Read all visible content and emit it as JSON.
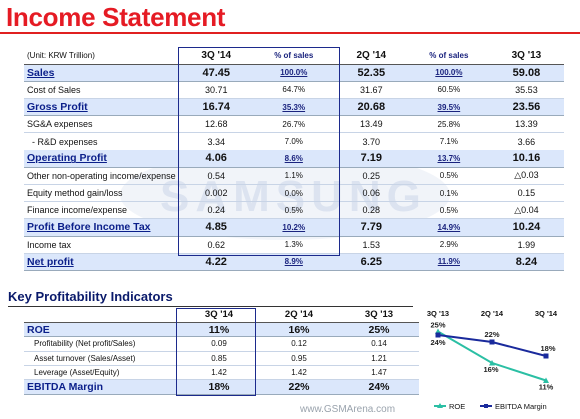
{
  "page": {
    "title": "Income Statement",
    "watermark": "SAMSUNG",
    "site_mark": "www.GSMArena.com"
  },
  "income": {
    "headers": [
      "(Unit: KRW Trillion)",
      "3Q '14",
      "% of sales",
      "2Q '14",
      "% of sales",
      "3Q '13"
    ],
    "rows": [
      {
        "label": "Sales",
        "q3_14": "47.45",
        "pct_q3_14": "100.0%",
        "q2_14": "52.35",
        "pct_q2_14": "100.0%",
        "q3_13": "59.08",
        "kind": "major"
      },
      {
        "label": "Cost of Sales",
        "q3_14": "30.71",
        "pct_q3_14": "64.7%",
        "q2_14": "31.67",
        "pct_q2_14": "60.5%",
        "q3_13": "35.53",
        "kind": "minor"
      },
      {
        "label": "Gross Profit",
        "q3_14": "16.74",
        "pct_q3_14": "35.3%",
        "q2_14": "20.68",
        "pct_q2_14": "39.5%",
        "q3_13": "23.56",
        "kind": "major"
      },
      {
        "label": "SG&A expenses",
        "q3_14": "12.68",
        "pct_q3_14": "26.7%",
        "q2_14": "13.49",
        "pct_q2_14": "25.8%",
        "q3_13": "13.39",
        "kind": "minor"
      },
      {
        "label": "- R&D expenses",
        "q3_14": "3.34",
        "pct_q3_14": "7.0%",
        "q2_14": "3.70",
        "pct_q2_14": "7.1%",
        "q3_13": "3.66",
        "kind": "indent"
      },
      {
        "label": "Operating Profit",
        "q3_14": "4.06",
        "pct_q3_14": "8.6%",
        "q2_14": "7.19",
        "pct_q2_14": "13.7%",
        "q3_13": "10.16",
        "kind": "major"
      },
      {
        "label": "Other non-operating income/expense",
        "q3_14": "0.54",
        "pct_q3_14": "1.1%",
        "q2_14": "0.25",
        "pct_q2_14": "0.5%",
        "q3_13": "△0.03",
        "kind": "minor"
      },
      {
        "label": "Equity method gain/loss",
        "q3_14": "0.002",
        "pct_q3_14": "0.0%",
        "q2_14": "0.06",
        "pct_q2_14": "0.1%",
        "q3_13": "0.15",
        "kind": "minor"
      },
      {
        "label": "Finance income/expense",
        "q3_14": "0.24",
        "pct_q3_14": "0.5%",
        "q2_14": "0.28",
        "pct_q2_14": "0.5%",
        "q3_13": "△0.04",
        "kind": "minor"
      },
      {
        "label": "Profit Before Income Tax",
        "q3_14": "4.85",
        "pct_q3_14": "10.2%",
        "q2_14": "7.79",
        "pct_q2_14": "14.9%",
        "q3_13": "10.24",
        "kind": "major"
      },
      {
        "label": "Income tax",
        "q3_14": "0.62",
        "pct_q3_14": "1.3%",
        "q2_14": "1.53",
        "pct_q2_14": "2.9%",
        "q3_13": "1.99",
        "kind": "minor"
      },
      {
        "label": "Net profit",
        "q3_14": "4.22",
        "pct_q3_14": "8.9%",
        "q2_14": "6.25",
        "pct_q2_14": "11.9%",
        "q3_13": "8.24",
        "kind": "major"
      }
    ]
  },
  "kpi": {
    "title": "Key Profitability Indicators",
    "headers": [
      "",
      "3Q '14",
      "2Q '14",
      "3Q '13"
    ],
    "rows": [
      {
        "label": "ROE",
        "q3_14": "11%",
        "q2_14": "16%",
        "q3_13": "25%",
        "kind": "major"
      },
      {
        "label": "Profitability (Net profit/Sales)",
        "q3_14": "0.09",
        "q2_14": "0.12",
        "q3_13": "0.14",
        "kind": "minor"
      },
      {
        "label": "Asset turnover (Sales/Asset)",
        "q3_14": "0.85",
        "q2_14": "0.95",
        "q3_13": "1.21",
        "kind": "minor"
      },
      {
        "label": "Leverage (Asset/Equity)",
        "q3_14": "1.42",
        "q2_14": "1.42",
        "q3_13": "1.47",
        "kind": "minor"
      },
      {
        "label": "EBITDA Margin",
        "q3_14": "18%",
        "q2_14": "22%",
        "q3_13": "24%",
        "kind": "major"
      }
    ]
  },
  "chart_data": {
    "type": "line",
    "categories": [
      "3Q '13",
      "2Q '14",
      "3Q '14"
    ],
    "series": [
      {
        "name": "ROE",
        "values": [
          25,
          16,
          11
        ],
        "color": "#2bbfa4"
      },
      {
        "name": "EBITDA Margin",
        "values": [
          24,
          22,
          18
        ],
        "color": "#1a2a9c"
      }
    ],
    "data_labels": true,
    "legend": "bottom"
  },
  "colors": {
    "title": "#e51b24",
    "row_highlight": "#dbe7fb",
    "label_blue": "#0b1f8a"
  }
}
